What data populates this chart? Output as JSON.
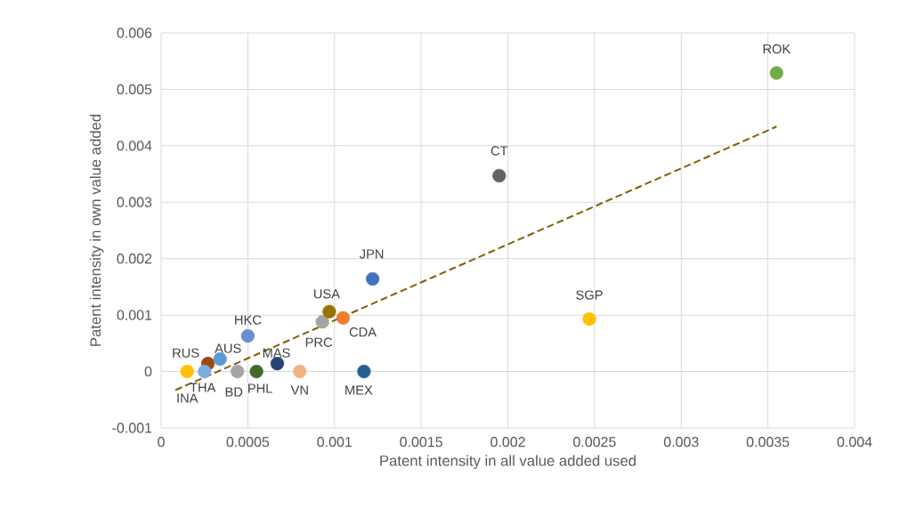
{
  "chart_data": {
    "type": "scatter",
    "xlabel": "Patent intensity in all value added used",
    "ylabel": "Patent intensity in own value added",
    "xlim": [
      0,
      0.004
    ],
    "ylim": [
      -0.001,
      0.006
    ],
    "xticks": [
      0,
      0.0005,
      0.001,
      0.0015,
      0.002,
      0.0025,
      0.003,
      0.0035,
      0.004
    ],
    "yticks": [
      -0.001,
      0,
      0.001,
      0.002,
      0.003,
      0.004,
      0.005,
      0.006
    ],
    "grid": true,
    "series": [
      {
        "name": "INA",
        "color": "#ffc000",
        "marker": "circle",
        "x": [
          0.00015
        ],
        "values": [
          0.0
        ]
      },
      {
        "name": "RUS",
        "color": "#9e480e",
        "marker": "circle",
        "x": [
          0.00027
        ],
        "values": [
          0.00014
        ]
      },
      {
        "name": "THA",
        "color": "#7cafdd",
        "marker": "circle",
        "x": [
          0.00025
        ],
        "values": [
          0.0
        ]
      },
      {
        "name": "AUS",
        "color": "#5b9bd5",
        "marker": "circle",
        "x": [
          0.00034
        ],
        "values": [
          0.00022
        ]
      },
      {
        "name": "BD",
        "color": "#a5a5a5",
        "marker": "circle",
        "x": [
          0.00044
        ],
        "values": [
          0.0
        ]
      },
      {
        "name": "HKC",
        "color": "#698ed0",
        "marker": "circle",
        "x": [
          0.0005
        ],
        "values": [
          0.00063
        ]
      },
      {
        "name": "PHL",
        "color": "#43682b",
        "marker": "circle",
        "x": [
          0.00055
        ],
        "values": [
          0.0
        ]
      },
      {
        "name": "MAS",
        "color": "#264478",
        "marker": "circle",
        "x": [
          0.00067
        ],
        "values": [
          0.00014
        ]
      },
      {
        "name": "VN",
        "color": "#f4b183",
        "marker": "circle",
        "x": [
          0.0008
        ],
        "values": [
          0.0
        ]
      },
      {
        "name": "PRC",
        "color": "#a5a5a5",
        "marker": "circle",
        "x": [
          0.00093
        ],
        "values": [
          0.00088
        ]
      },
      {
        "name": "USA",
        "color": "#997300",
        "marker": "circle",
        "x": [
          0.00097
        ],
        "values": [
          0.00106
        ]
      },
      {
        "name": "CDA",
        "color": "#ed7d31",
        "marker": "circle",
        "x": [
          0.00105
        ],
        "values": [
          0.00095
        ]
      },
      {
        "name": "MEX",
        "color": "#255e91",
        "marker": "circle",
        "x": [
          0.00117
        ],
        "values": [
          0.0
        ]
      },
      {
        "name": "JPN",
        "color": "#4472c4",
        "marker": "circle",
        "x": [
          0.00122
        ],
        "values": [
          0.00164
        ]
      },
      {
        "name": "CT",
        "color": "#636363",
        "marker": "circle",
        "x": [
          0.00195
        ],
        "values": [
          0.00347
        ]
      },
      {
        "name": "SGP",
        "color": "#ffc000",
        "marker": "circle",
        "x": [
          0.00247
        ],
        "values": [
          0.00093
        ]
      },
      {
        "name": "ROK",
        "color": "#70ad47",
        "marker": "circle",
        "x": [
          0.00355
        ],
        "values": [
          0.00529
        ]
      },
      {
        "type": "line",
        "color": "#806000",
        "line_style": "dashed",
        "marker": "none",
        "x": [
          8.2e-05,
          0.00355
        ],
        "values": [
          -0.00033,
          0.00434
        ]
      }
    ]
  }
}
